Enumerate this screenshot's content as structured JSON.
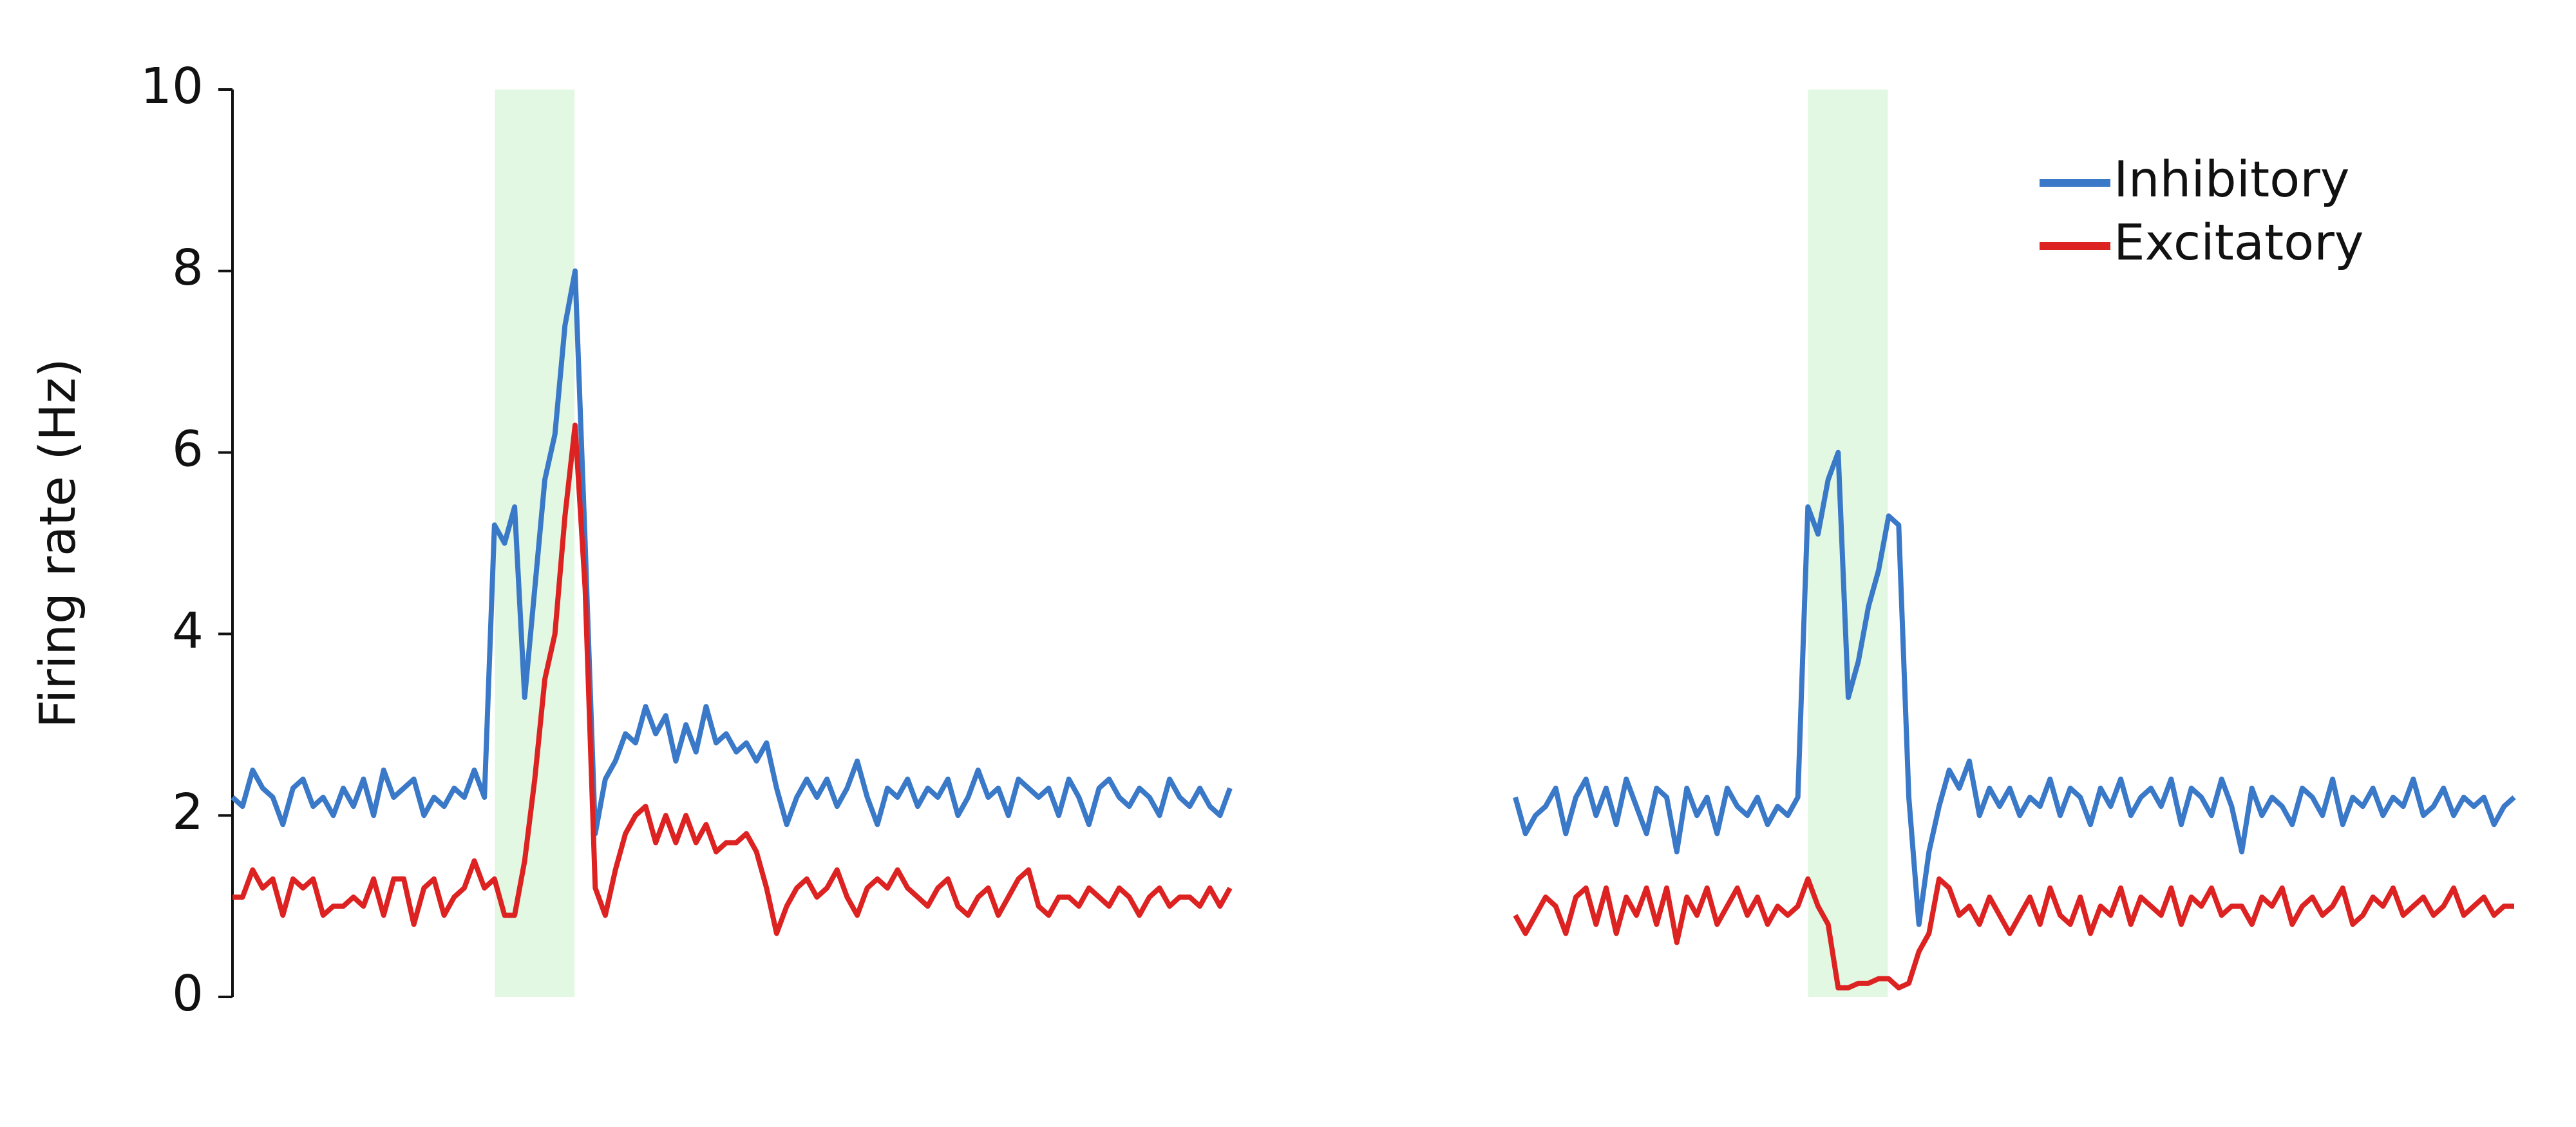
{
  "chart_data": [
    {
      "type": "line",
      "ylabel": "Firing rate (Hz)",
      "ylim": [
        0,
        10
      ],
      "yticks": [
        0,
        2,
        4,
        6,
        8,
        10
      ],
      "series": [
        {
          "color": "#3a78c8",
          "values": [
            2.2,
            2.1,
            2.5,
            2.3,
            2.2,
            1.9,
            2.3,
            2.4,
            2.1,
            2.2,
            2.0,
            2.3,
            2.1,
            2.4,
            2.0,
            2.5,
            2.2,
            2.3,
            2.4,
            2.0,
            2.2,
            2.1,
            2.3,
            2.2,
            2.5,
            2.2,
            5.2,
            5.0,
            5.4,
            3.3,
            4.5,
            5.7,
            6.2,
            7.4,
            8.0,
            5.0,
            1.8,
            2.4,
            2.6,
            2.9,
            2.8,
            3.2,
            2.9,
            3.1,
            2.6,
            3.0,
            2.7,
            3.2,
            2.8,
            2.9,
            2.7,
            2.8,
            2.6,
            2.8,
            2.3,
            1.9,
            2.2,
            2.4,
            2.2,
            2.4,
            2.1,
            2.3,
            2.6,
            2.2,
            1.9,
            2.3,
            2.2,
            2.4,
            2.1,
            2.3,
            2.2,
            2.4,
            2.0,
            2.2,
            2.5,
            2.2,
            2.3,
            2.0,
            2.4,
            2.3,
            2.2,
            2.3,
            2.0,
            2.4,
            2.2,
            1.9,
            2.3,
            2.4,
            2.2,
            2.1,
            2.3,
            2.2,
            2.0,
            2.4,
            2.2,
            2.1,
            2.3,
            2.1,
            2.0,
            2.3
          ]
        },
        {
          "color": "#dd2222",
          "values": [
            1.1,
            1.1,
            1.4,
            1.2,
            1.3,
            0.9,
            1.3,
            1.2,
            1.3,
            0.9,
            1.0,
            1.0,
            1.1,
            1.0,
            1.3,
            0.9,
            1.3,
            1.3,
            0.8,
            1.2,
            1.3,
            0.9,
            1.1,
            1.2,
            1.5,
            1.2,
            1.3,
            0.9,
            0.9,
            1.5,
            2.4,
            3.5,
            4.0,
            5.3,
            6.3,
            4.5,
            1.2,
            0.9,
            1.4,
            1.8,
            2.0,
            2.1,
            1.7,
            2.0,
            1.7,
            2.0,
            1.7,
            1.9,
            1.6,
            1.7,
            1.7,
            1.8,
            1.6,
            1.2,
            0.7,
            1.0,
            1.2,
            1.3,
            1.1,
            1.2,
            1.4,
            1.1,
            0.9,
            1.2,
            1.3,
            1.2,
            1.4,
            1.2,
            1.1,
            1.0,
            1.2,
            1.3,
            1.0,
            0.9,
            1.1,
            1.2,
            0.9,
            1.1,
            1.3,
            1.4,
            1.0,
            0.9,
            1.1,
            1.1,
            1.0,
            1.2,
            1.1,
            1.0,
            1.2,
            1.1,
            0.9,
            1.1,
            1.2,
            1.0,
            1.1,
            1.1,
            1.0,
            1.2,
            1.0,
            1.2
          ]
        }
      ]
    },
    {
      "type": "line",
      "ylim": [
        0,
        10
      ],
      "legend": "upper right",
      "series": [
        {
          "name": "Inhibitory",
          "color": "#3a78c8",
          "values": [
            2.2,
            1.8,
            2.0,
            2.1,
            2.3,
            1.8,
            2.2,
            2.4,
            2.0,
            2.3,
            1.9,
            2.4,
            2.1,
            1.8,
            2.3,
            2.2,
            1.6,
            2.3,
            2.0,
            2.2,
            1.8,
            2.3,
            2.1,
            2.0,
            2.2,
            1.9,
            2.1,
            2.0,
            2.2,
            5.4,
            5.1,
            5.7,
            6.0,
            3.3,
            3.7,
            4.3,
            4.7,
            5.3,
            5.2,
            2.2,
            0.8,
            1.6,
            2.1,
            2.5,
            2.3,
            2.6,
            2.0,
            2.3,
            2.1,
            2.3,
            2.0,
            2.2,
            2.1,
            2.4,
            2.0,
            2.3,
            2.2,
            1.9,
            2.3,
            2.1,
            2.4,
            2.0,
            2.2,
            2.3,
            2.1,
            2.4,
            1.9,
            2.3,
            2.2,
            2.0,
            2.4,
            2.1,
            1.6,
            2.3,
            2.0,
            2.2,
            2.1,
            1.9,
            2.3,
            2.2,
            2.0,
            2.4,
            1.9,
            2.2,
            2.1,
            2.3,
            2.0,
            2.2,
            2.1,
            2.4,
            2.0,
            2.1,
            2.3,
            2.0,
            2.2,
            2.1,
            2.2,
            1.9,
            2.1,
            2.2
          ]
        },
        {
          "name": "Excitatory",
          "color": "#dd2222",
          "values": [
            0.9,
            0.7,
            0.9,
            1.1,
            1.0,
            0.7,
            1.1,
            1.2,
            0.8,
            1.2,
            0.7,
            1.1,
            0.9,
            1.2,
            0.8,
            1.2,
            0.6,
            1.1,
            0.9,
            1.2,
            0.8,
            1.0,
            1.2,
            0.9,
            1.1,
            0.8,
            1.0,
            0.9,
            1.0,
            1.3,
            1.0,
            0.8,
            0.1,
            0.1,
            0.15,
            0.15,
            0.2,
            0.2,
            0.1,
            0.15,
            0.5,
            0.7,
            1.3,
            1.2,
            0.9,
            1.0,
            0.8,
            1.1,
            0.9,
            0.7,
            0.9,
            1.1,
            0.8,
            1.2,
            0.9,
            0.8,
            1.1,
            0.7,
            1.0,
            0.9,
            1.2,
            0.8,
            1.1,
            1.0,
            0.9,
            1.2,
            0.8,
            1.1,
            1.0,
            1.2,
            0.9,
            1.0,
            1.0,
            0.8,
            1.1,
            1.0,
            1.2,
            0.8,
            1.0,
            1.1,
            0.9,
            1.0,
            1.2,
            0.8,
            0.9,
            1.1,
            1.0,
            1.2,
            0.9,
            1.0,
            1.1,
            0.9,
            1.0,
            1.2,
            0.9,
            1.0,
            1.1,
            0.9,
            1.0,
            1.0
          ]
        }
      ]
    }
  ]
}
